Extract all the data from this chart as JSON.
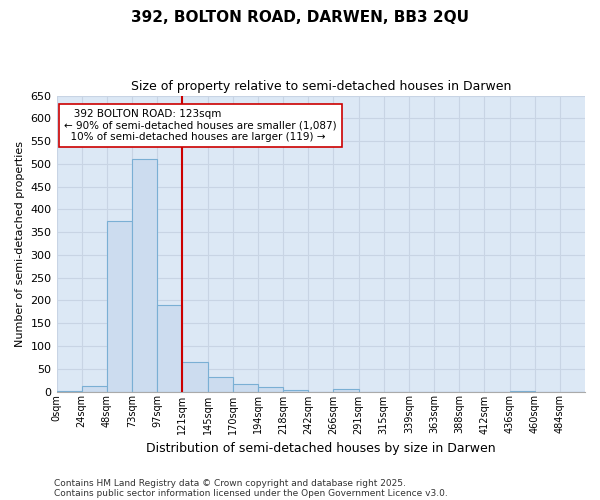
{
  "title": "392, BOLTON ROAD, DARWEN, BB3 2QU",
  "subtitle": "Size of property relative to semi-detached houses in Darwen",
  "xlabel": "Distribution of semi-detached houses by size in Darwen",
  "ylabel": "Number of semi-detached properties",
  "bar_color": "#ccdcef",
  "bar_edge_color": "#7aafd4",
  "categories": [
    "0sqm",
    "24sqm",
    "48sqm",
    "73sqm",
    "97sqm",
    "121sqm",
    "145sqm",
    "170sqm",
    "194sqm",
    "218sqm",
    "242sqm",
    "266sqm",
    "291sqm",
    "315sqm",
    "339sqm",
    "363sqm",
    "388sqm",
    "412sqm",
    "436sqm",
    "460sqm",
    "484sqm"
  ],
  "values": [
    2,
    13,
    375,
    510,
    190,
    65,
    32,
    17,
    10,
    4,
    0,
    5,
    0,
    0,
    0,
    0,
    0,
    0,
    2,
    0,
    0
  ],
  "ylim": [
    0,
    650
  ],
  "yticks": [
    0,
    50,
    100,
    150,
    200,
    250,
    300,
    350,
    400,
    450,
    500,
    550,
    600,
    650
  ],
  "property_line_x": 5,
  "property_line_label": "392 BOLTON ROAD: 123sqm",
  "annotation_smaller": "← 90% of semi-detached houses are smaller (1,087)",
  "annotation_larger": "10% of semi-detached houses are larger (119) →",
  "red_line_color": "#cc0000",
  "grid_color": "#c8d4e4",
  "plot_bg_color": "#dce8f5",
  "fig_bg_color": "#ffffff",
  "footnote1": "Contains HM Land Registry data © Crown copyright and database right 2025.",
  "footnote2": "Contains public sector information licensed under the Open Government Licence v3.0."
}
